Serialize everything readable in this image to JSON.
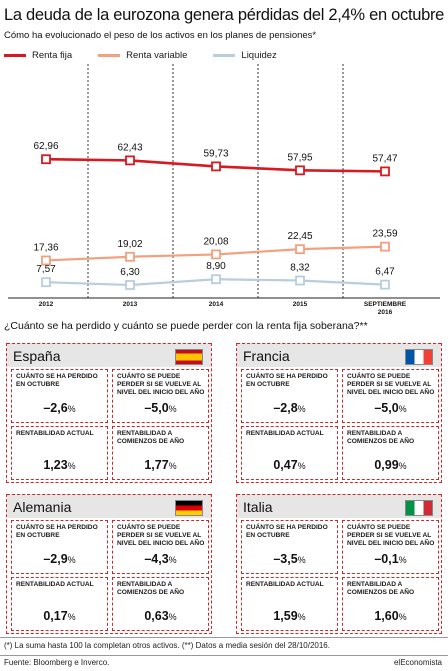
{
  "header": {
    "title": "La deuda de la eurozona genera pérdidas del 2,4% en octubre",
    "subtitle": "Cómo ha evolucionado el peso de los activos en los planes de pensiones*"
  },
  "colors": {
    "renta_fija": "#d71920",
    "renta_variable": "#f3a07e",
    "liquidez": "#b7cde0",
    "accent": "#c8292b"
  },
  "chart_data": {
    "type": "line",
    "x": [
      "2012",
      "2013",
      "2014",
      "2015",
      "SEPTIEMBRE 2016"
    ],
    "x_tick_lines": [
      [
        "2012"
      ],
      [
        "2013"
      ],
      [
        "2014"
      ],
      [
        "2015"
      ],
      [
        "SEPTIEMBRE",
        "2016"
      ]
    ],
    "series": [
      {
        "name": "Renta fija",
        "color": "#d71920",
        "values": [
          62.96,
          62.43,
          59.73,
          57.95,
          57.47
        ],
        "labels": [
          "62,96",
          "62,43",
          "59,73",
          "57,95",
          "57,47"
        ]
      },
      {
        "name": "Renta variable",
        "color": "#f3a07e",
        "values": [
          17.36,
          19.02,
          20.08,
          22.45,
          23.59
        ],
        "labels": [
          "17,36",
          "19,02",
          "20,08",
          "22,45",
          "23,59"
        ]
      },
      {
        "name": "Liquidez",
        "color": "#b7cde0",
        "values": [
          7.57,
          6.3,
          8.9,
          8.32,
          6.47
        ],
        "labels": [
          "7,57",
          "6,30",
          "8,90",
          "8,32",
          "6,47"
        ]
      }
    ],
    "legend": "top-left",
    "grid": "vertical dashed"
  },
  "section_question": "¿Cuánto se ha perdido y cuánto se puede perder con la renta fija soberana?**",
  "cards": [
    {
      "country": "España",
      "flag": "es",
      "lost_label": "CUÁNTO SE HA PERDIDO EN OCTUBRE",
      "lost": "–2,6",
      "could_label": "CUÁNTO SE PUEDE PERDER SI SE VUELVE AL NIVEL DEL INICIO DEL AÑO",
      "could": "–5,0",
      "current_label": "RENTABILIDAD ACTUAL",
      "current": "1,23",
      "start_label": "RENTABILIDAD A COMIENZOS DE AÑO",
      "start": "1,77",
      "unit": "%"
    },
    {
      "country": "Francia",
      "flag": "fr",
      "lost_label": "CUÁNTO SE HA PERDIDO EN OCTUBRE",
      "lost": "–2,8",
      "could_label": "CUÁNTO SE PUEDE PERDER SI SE VUELVE AL NIVEL DEL INICIO DEL AÑO",
      "could": "–5,0",
      "current_label": "RENTABILIDAD ACTUAL",
      "current": "0,47",
      "start_label": "RENTABILIDAD A COMIENZOS DE AÑO",
      "start": "0,99",
      "unit": "%"
    },
    {
      "country": "Alemania",
      "flag": "de",
      "lost_label": "CUÁNTO SE HA PERDIDO EN OCTUBRE",
      "lost": "–2,9",
      "could_label": "CUÁNTO SE PUEDE PERDER SI SE VUELVE AL NIVEL DEL INICIO DEL AÑO",
      "could": "–4,3",
      "current_label": "RENTABILIDAD ACTUAL",
      "current": "0,17",
      "start_label": "RENTABILIDAD A COMIENZOS DE AÑO",
      "start": "0,63",
      "unit": "%"
    },
    {
      "country": "Italia",
      "flag": "it",
      "lost_label": "CUÁNTO SE HA PERDIDO EN OCTUBRE",
      "lost": "–3,5",
      "could_label": "CUÁNTO SE PUEDE PERDER SI SE VUELVE AL NIVEL DEL INICIO DEL AÑO",
      "could": "–0,1",
      "current_label": "RENTABILIDAD ACTUAL",
      "current": "1,59",
      "start_label": "RENTABILIDAD A COMIENZOS DE AÑO",
      "start": "1,60",
      "unit": "%"
    }
  ],
  "footnote": "(*) La suma hasta 100 la completan otros activos. (**) Datos a media sesión del 28/10/2016.",
  "source": "Fuente: Bloomberg e Inverco.",
  "brand": "elEconomista"
}
